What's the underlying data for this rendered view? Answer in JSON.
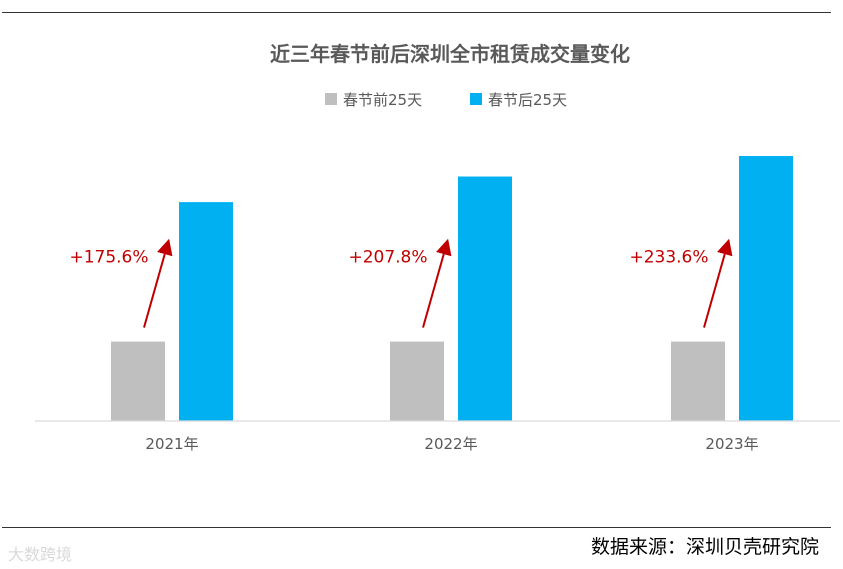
{
  "chart_data": {
    "type": "bar",
    "title": "近三年春节前后深圳全市租赁成交量变化",
    "categories": [
      "2021年",
      "2022年",
      "2023年"
    ],
    "series": [
      {
        "name": "春节前25天",
        "values": [
          100,
          100,
          100
        ],
        "color": "#bfbfbf"
      },
      {
        "name": "春节后25天",
        "values": [
          275.6,
          307.8,
          333.6
        ],
        "color": "#00b0f0"
      }
    ],
    "change_labels": [
      "+175.6%",
      "+207.8%",
      "+233.6%"
    ],
    "change_color": "#c00000",
    "legend_position": "top-center",
    "grid": false,
    "y_axis_visible": false
  },
  "source": "数据来源：深圳贝壳研究院",
  "watermark": "大数跨境"
}
